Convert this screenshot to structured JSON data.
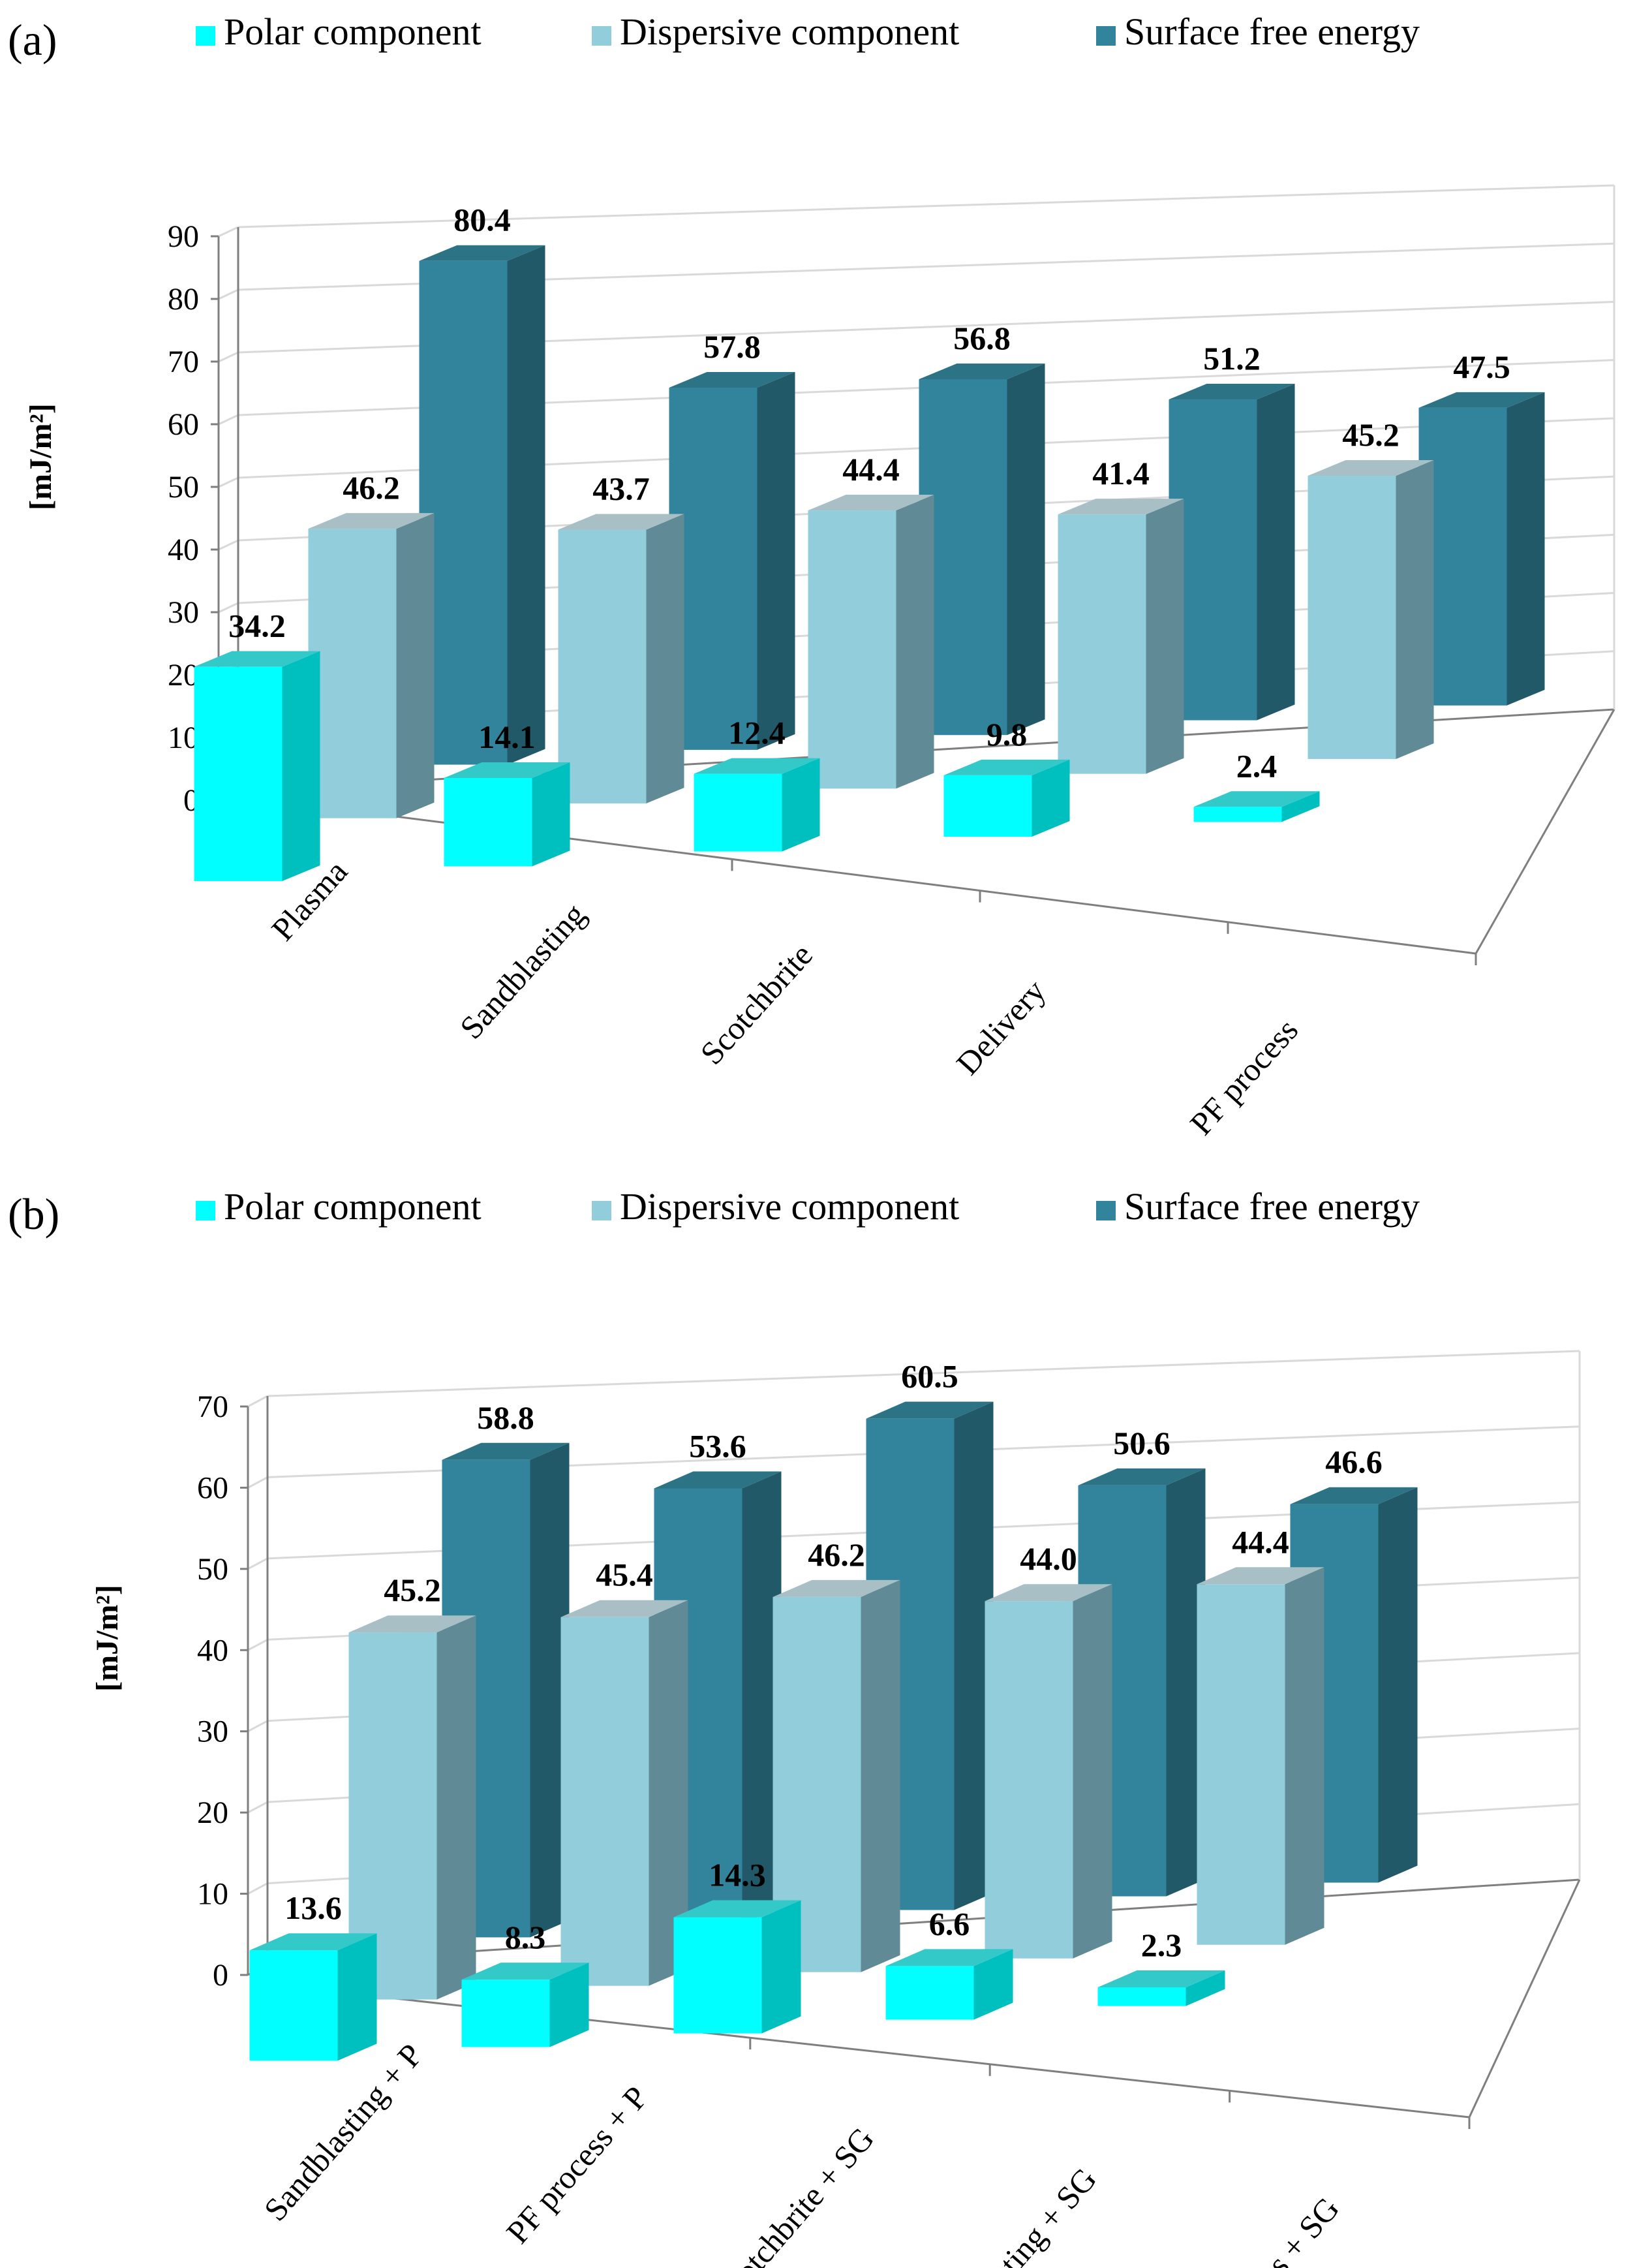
{
  "series_colors": {
    "polar": {
      "front": "#00ffff",
      "side": "#00bfbf",
      "top": "#33c9c9"
    },
    "dispersive": {
      "front": "#92cddc",
      "side": "#5f8a96",
      "top": "#a9bfc6"
    },
    "surface": {
      "front": "#31849b",
      "side": "#215968",
      "top": "#2b7385"
    }
  },
  "chart_data": [
    {
      "panel": "(a)",
      "type": "bar",
      "ylabel": "[mJ/m²]",
      "ylim": [
        0,
        90
      ],
      "yticks": [
        "0",
        "10",
        "20",
        "30",
        "40",
        "50",
        "60",
        "70",
        "80",
        "90"
      ],
      "categories": [
        "Plasma",
        "Sandblasting",
        "Scotchbrite",
        "Delivery",
        "PF process"
      ],
      "series": [
        {
          "key": "polar",
          "name": "Polar component",
          "values": [
            34.2,
            14.1,
            12.4,
            9.8,
            2.4
          ],
          "labels": [
            "34.2",
            "14.1",
            "12.4",
            "9.8",
            "2.4"
          ]
        },
        {
          "key": "dispersive",
          "name": "Dispersive component",
          "values": [
            46.2,
            43.7,
            44.4,
            41.4,
            45.2
          ],
          "labels": [
            "46.2",
            "43.7",
            "44.4",
            "41.4",
            "45.2"
          ]
        },
        {
          "key": "surface",
          "name": "Surface free energy",
          "values": [
            80.4,
            57.8,
            56.8,
            51.2,
            47.5
          ],
          "labels": [
            "80.4",
            "57.8",
            "56.8",
            "51.2",
            "47.5"
          ]
        }
      ]
    },
    {
      "panel": "(b)",
      "type": "bar",
      "ylabel": "[mJ/m²]",
      "ylim": [
        0,
        70
      ],
      "yticks": [
        "0",
        "10",
        "20",
        "30",
        "40",
        "50",
        "60",
        "70"
      ],
      "categories": [
        "Sandblasting + P",
        "PF process + P",
        "Scotchbrite + SG",
        "Sandblasting + SG",
        "PF process + SG"
      ],
      "series": [
        {
          "key": "polar",
          "name": "Polar component",
          "values": [
            13.6,
            8.3,
            14.3,
            6.6,
            2.3
          ],
          "labels": [
            "13.6",
            "8.3",
            "14.3",
            "6.6",
            "2.3"
          ]
        },
        {
          "key": "dispersive",
          "name": "Dispersive component",
          "values": [
            45.2,
            45.4,
            46.2,
            44.0,
            44.4
          ],
          "labels": [
            "45.2",
            "45.4",
            "46.2",
            "44.0",
            "44.4"
          ]
        },
        {
          "key": "surface",
          "name": "Surface free energy",
          "values": [
            58.8,
            53.6,
            60.5,
            50.6,
            46.6
          ],
          "labels": [
            "58.8",
            "53.6",
            "60.5",
            "50.6",
            "46.6"
          ]
        }
      ]
    }
  ]
}
